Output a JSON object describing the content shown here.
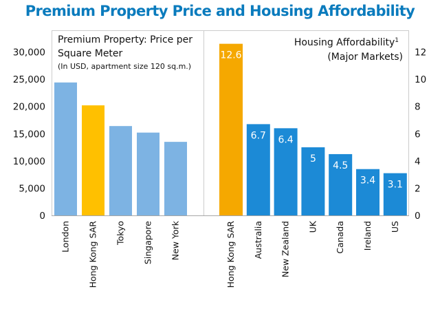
{
  "title": "Premium Property Price and Housing Affordability",
  "chart_data": [
    {
      "type": "bar",
      "title": "Premium Property: Price per Square Meter",
      "title_line1": "Premium Property: Price per",
      "title_line2": "Square Meter",
      "subtitle": "(In USD, apartment size 120 sq.m.)",
      "xlabel": "",
      "ylabel": "",
      "axis_side": "left",
      "ylim": [
        0,
        30000
      ],
      "yticks": [
        0,
        5000,
        10000,
        15000,
        20000,
        25000,
        30000
      ],
      "ytick_labels": [
        "0",
        "5,000",
        "10,000",
        "15,000",
        "20,000",
        "25,000",
        "30,000"
      ],
      "categories": [
        "London",
        "Hong Kong SAR",
        "Tokyo",
        "Singapore",
        "New York"
      ],
      "values": [
        24400,
        20200,
        16400,
        15200,
        13500
      ],
      "colors": [
        "#7db3e3",
        "#ffc000",
        "#7db3e3",
        "#7db3e3",
        "#7db3e3"
      ],
      "grid": false,
      "data_labels": false
    },
    {
      "type": "bar",
      "title": "Housing Affordability¹ (Major Markets)",
      "title_line1": "Housing Affordability",
      "title_superscript": "1",
      "title_line2": "(Major Markets)",
      "xlabel": "",
      "ylabel": "",
      "axis_side": "right",
      "ylim": [
        0,
        12
      ],
      "yticks": [
        0,
        2,
        4,
        6,
        8,
        10,
        12
      ],
      "ytick_labels": [
        "0",
        "2",
        "4",
        "6",
        "8",
        "10",
        "12"
      ],
      "categories": [
        "Hong Kong SAR",
        "Australia",
        "New Zealand",
        "UK",
        "Canada",
        "Ireland",
        "US"
      ],
      "values": [
        12.6,
        6.7,
        6.4,
        5,
        4.5,
        3.4,
        3.1
      ],
      "value_labels": [
        "12.6",
        "6.7",
        "6.4",
        "5",
        "4.5",
        "3.4",
        "3.1"
      ],
      "colors": [
        "#f5a800",
        "#1c8ad6",
        "#1c8ad6",
        "#1c8ad6",
        "#1c8ad6",
        "#1c8ad6",
        "#1c8ad6"
      ],
      "grid": false,
      "data_labels": true
    }
  ],
  "colors": {
    "title": "#0a7bbd",
    "frame": "#bfbfbf",
    "axis": "#999999"
  }
}
